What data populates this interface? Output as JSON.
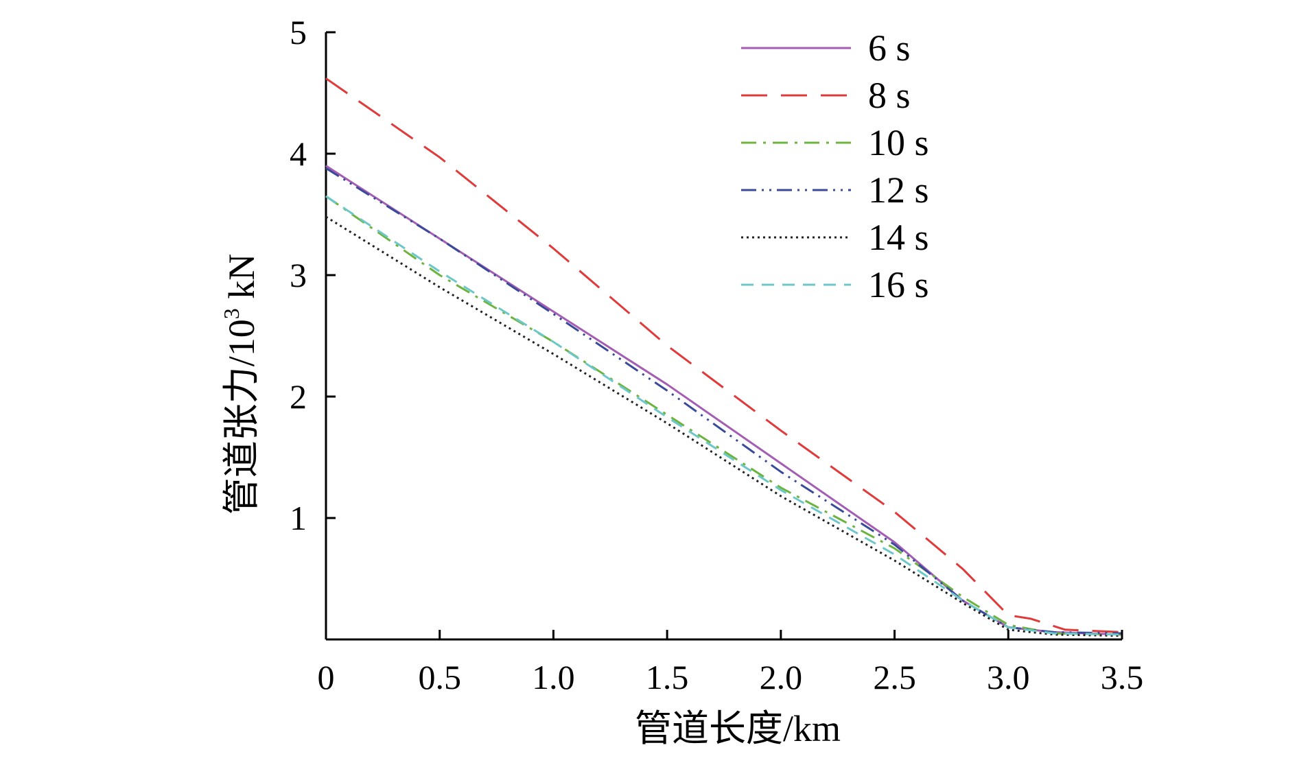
{
  "chart_data": {
    "type": "line",
    "xlabel": "管道长度/km",
    "ylabel_main": "管道张力/10",
    "ylabel_sup": "3",
    "ylabel_unit": " kN",
    "xlim": [
      0,
      3.5
    ],
    "ylim": [
      0,
      5
    ],
    "x_ticks": [
      "0",
      "0.5",
      "1.0",
      "1.5",
      "2.0",
      "2.5",
      "3.0",
      "3.5"
    ],
    "x_tick_values": [
      0,
      0.5,
      1.0,
      1.5,
      2.0,
      2.5,
      3.0,
      3.5
    ],
    "y_ticks": [
      "1",
      "2",
      "3",
      "4",
      "5"
    ],
    "y_tick_values": [
      1,
      2,
      3,
      4,
      5
    ],
    "grid": false,
    "legend_position": "top-right",
    "series": [
      {
        "name": "6 s",
        "color": "#a35db3",
        "dash": "solid",
        "points": [
          [
            0,
            3.9
          ],
          [
            0.5,
            3.3
          ],
          [
            1.0,
            2.7
          ],
          [
            1.5,
            2.1
          ],
          [
            2.0,
            1.45
          ],
          [
            2.5,
            0.8
          ],
          [
            2.8,
            0.32
          ],
          [
            3.0,
            0.1
          ],
          [
            3.2,
            0.06
          ],
          [
            3.5,
            0.04
          ]
        ]
      },
      {
        "name": "8 s",
        "color": "#e03a3a",
        "dash": "long-dash",
        "points": [
          [
            0,
            4.62
          ],
          [
            0.5,
            3.97
          ],
          [
            1.0,
            3.22
          ],
          [
            1.5,
            2.42
          ],
          [
            2.0,
            1.72
          ],
          [
            2.5,
            1.05
          ],
          [
            2.8,
            0.58
          ],
          [
            3.0,
            0.2
          ],
          [
            3.1,
            0.17
          ],
          [
            3.25,
            0.08
          ],
          [
            3.5,
            0.06
          ]
        ]
      },
      {
        "name": "10 s",
        "color": "#6cb43f",
        "dash": "dash-dot",
        "points": [
          [
            0,
            3.65
          ],
          [
            0.5,
            3.0
          ],
          [
            1.0,
            2.45
          ],
          [
            1.5,
            1.85
          ],
          [
            2.0,
            1.25
          ],
          [
            2.5,
            0.75
          ],
          [
            2.8,
            0.35
          ],
          [
            3.0,
            0.12
          ],
          [
            3.2,
            0.05
          ],
          [
            3.5,
            0.04
          ]
        ]
      },
      {
        "name": "12 s",
        "color": "#3a4a9a",
        "dash": "dash-dot-dot",
        "points": [
          [
            0,
            3.88
          ],
          [
            0.5,
            3.3
          ],
          [
            1.0,
            2.68
          ],
          [
            1.5,
            2.05
          ],
          [
            2.0,
            1.38
          ],
          [
            2.5,
            0.78
          ],
          [
            2.8,
            0.32
          ],
          [
            3.0,
            0.1
          ],
          [
            3.2,
            0.06
          ],
          [
            3.5,
            0.05
          ]
        ]
      },
      {
        "name": "14 s",
        "color": "#222222",
        "dash": "dotted",
        "points": [
          [
            0,
            3.48
          ],
          [
            0.5,
            2.9
          ],
          [
            1.0,
            2.35
          ],
          [
            1.5,
            1.78
          ],
          [
            2.0,
            1.18
          ],
          [
            2.5,
            0.65
          ],
          [
            2.8,
            0.3
          ],
          [
            3.0,
            0.08
          ],
          [
            3.2,
            0.04
          ],
          [
            3.5,
            0.03
          ]
        ]
      },
      {
        "name": "16 s",
        "color": "#6dc7c9",
        "dash": "dash",
        "points": [
          [
            0,
            3.65
          ],
          [
            0.5,
            3.03
          ],
          [
            1.0,
            2.45
          ],
          [
            1.5,
            1.83
          ],
          [
            2.0,
            1.23
          ],
          [
            2.5,
            0.7
          ],
          [
            2.8,
            0.32
          ],
          [
            3.0,
            0.1
          ],
          [
            3.2,
            0.05
          ],
          [
            3.5,
            0.04
          ]
        ]
      }
    ]
  }
}
